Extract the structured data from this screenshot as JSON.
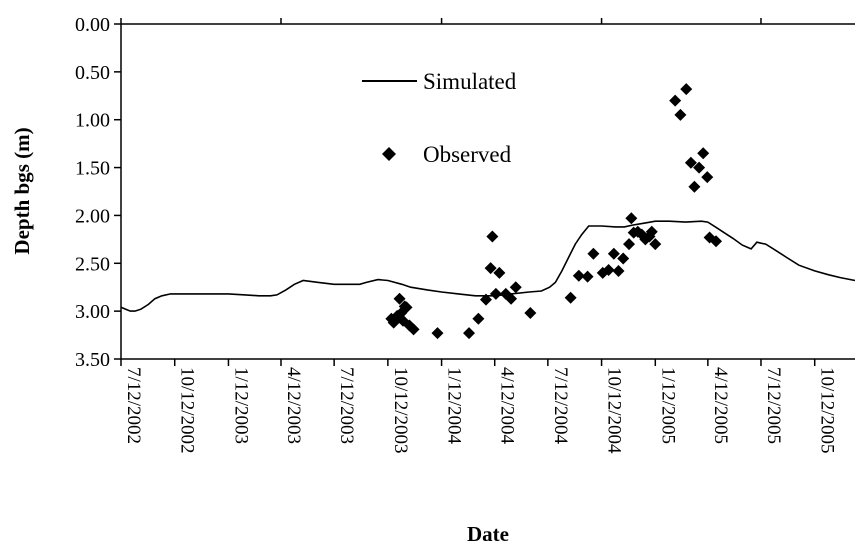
{
  "chart_data": {
    "type": "line",
    "title": "",
    "xlabel": "Date",
    "ylabel": "Depth bgs (m)",
    "y_inverted": true,
    "ylim": [
      0.0,
      3.5
    ],
    "xlim": [
      "2002-07-12",
      "2005-12-20"
    ],
    "y_ticks": [
      "0.00",
      "0.50",
      "1.00",
      "1.50",
      "2.00",
      "2.50",
      "3.00",
      "3.50"
    ],
    "x_ticks": [
      "7/12/2002",
      "10/12/2002",
      "1/12/2003",
      "4/12/2003",
      "7/12/2003",
      "10/12/2003",
      "1/12/2004",
      "4/12/2004",
      "7/12/2004",
      "10/12/2004",
      "1/12/2005",
      "4/12/2005",
      "7/12/2005",
      "10/12/2005"
    ],
    "grid": false,
    "legend_position": "top-center",
    "series": [
      {
        "name": "Simulated",
        "style": "line",
        "color": "#000000",
        "x": [
          "2002-07-12",
          "2002-07-20",
          "2002-07-28",
          "2002-08-05",
          "2002-08-15",
          "2002-08-28",
          "2002-09-08",
          "2002-09-20",
          "2002-10-05",
          "2002-10-20",
          "2002-11-10",
          "2002-12-10",
          "2003-01-12",
          "2003-02-10",
          "2003-03-05",
          "2003-03-25",
          "2003-04-05",
          "2003-04-20",
          "2003-05-05",
          "2003-05-20",
          "2003-06-15",
          "2003-07-12",
          "2003-08-05",
          "2003-08-25",
          "2003-09-05",
          "2003-09-25",
          "2003-10-12",
          "2003-11-05",
          "2003-11-20",
          "2003-12-20",
          "2004-01-12",
          "2004-02-10",
          "2004-03-10",
          "2004-04-12",
          "2004-05-10",
          "2004-06-10",
          "2004-07-01",
          "2004-07-15",
          "2004-07-25",
          "2004-08-05",
          "2004-08-18",
          "2004-08-28",
          "2004-09-08",
          "2004-09-20",
          "2004-10-12",
          "2004-11-05",
          "2004-11-20",
          "2004-12-05",
          "2004-12-25",
          "2005-01-12",
          "2005-02-05",
          "2005-03-05",
          "2005-04-01",
          "2005-04-12",
          "2005-04-25",
          "2005-05-10",
          "2005-05-25",
          "2005-06-10",
          "2005-06-25",
          "2005-07-05",
          "2005-07-12",
          "2005-07-20",
          "2005-08-05",
          "2005-08-25",
          "2005-09-15",
          "2005-10-12",
          "2005-11-05",
          "2005-11-25",
          "2005-12-20"
        ],
        "y": [
          2.96,
          2.98,
          3.0,
          3.0,
          2.98,
          2.93,
          2.87,
          2.84,
          2.82,
          2.82,
          2.82,
          2.82,
          2.82,
          2.83,
          2.84,
          2.84,
          2.83,
          2.78,
          2.72,
          2.68,
          2.7,
          2.72,
          2.72,
          2.72,
          2.7,
          2.67,
          2.68,
          2.72,
          2.75,
          2.78,
          2.8,
          2.82,
          2.84,
          2.84,
          2.82,
          2.8,
          2.79,
          2.75,
          2.7,
          2.58,
          2.42,
          2.3,
          2.2,
          2.11,
          2.11,
          2.12,
          2.12,
          2.1,
          2.08,
          2.06,
          2.06,
          2.07,
          2.06,
          2.07,
          2.12,
          2.18,
          2.24,
          2.31,
          2.35,
          2.28,
          2.29,
          2.3,
          2.36,
          2.44,
          2.52,
          2.58,
          2.62,
          2.65,
          2.68
        ]
      },
      {
        "name": "Observed",
        "style": "marker",
        "marker": "diamond",
        "color": "#000000",
        "x": [
          "2003-10-18",
          "2003-10-22",
          "2003-10-28",
          "2003-11-01",
          "2003-11-04",
          "2003-11-07",
          "2003-11-10",
          "2003-11-13",
          "2003-11-18",
          "2003-11-25",
          "2004-01-05",
          "2004-02-28",
          "2004-03-15",
          "2004-03-28",
          "2004-04-05",
          "2004-04-08",
          "2004-04-14",
          "2004-04-20",
          "2004-05-01",
          "2004-05-10",
          "2004-05-18",
          "2004-06-12",
          "2004-08-20",
          "2004-09-03",
          "2004-09-18",
          "2004-09-28",
          "2004-10-14",
          "2004-10-24",
          "2004-11-02",
          "2004-11-10",
          "2004-11-18",
          "2004-11-28",
          "2004-12-02",
          "2004-12-06",
          "2004-12-13",
          "2004-12-20",
          "2004-12-26",
          "2005-01-02",
          "2005-01-06",
          "2005-01-12",
          "2005-02-15",
          "2005-02-24",
          "2005-03-06",
          "2005-03-14",
          "2005-03-20",
          "2005-03-28",
          "2005-04-04",
          "2005-04-11",
          "2005-04-15",
          "2005-04-26"
        ],
        "y": [
          3.08,
          3.12,
          3.05,
          2.87,
          3.02,
          3.1,
          2.95,
          2.96,
          3.15,
          3.19,
          3.23,
          3.23,
          3.08,
          2.88,
          2.55,
          2.22,
          2.82,
          2.6,
          2.82,
          2.87,
          2.75,
          3.02,
          2.86,
          2.63,
          2.64,
          2.4,
          2.6,
          2.57,
          2.4,
          2.58,
          2.45,
          2.3,
          2.03,
          2.18,
          2.17,
          2.2,
          2.25,
          2.22,
          2.17,
          2.3,
          0.8,
          0.95,
          0.68,
          1.45,
          1.7,
          1.5,
          1.35,
          1.6,
          2.23,
          2.27
        ]
      }
    ]
  }
}
